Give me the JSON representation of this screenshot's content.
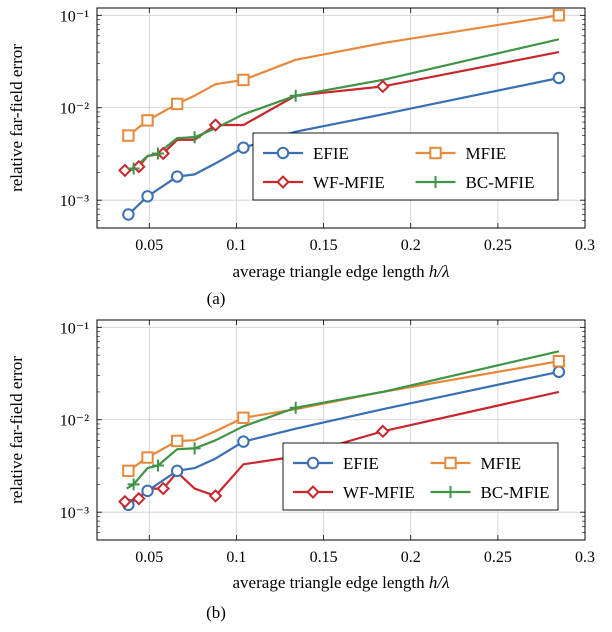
{
  "chart_data": [
    {
      "type": "line",
      "caption": "(a)",
      "xlabel": "average triangle edge length h/λ",
      "ylabel": "relative far-field error",
      "xlim": [
        0.02,
        0.3
      ],
      "ylim": [
        0.0005,
        0.12
      ],
      "yscale": "log",
      "grid": true,
      "legend_position": "bottom-right",
      "x_ticks": [
        0.05,
        0.1,
        0.15,
        0.2,
        0.25,
        0.3
      ],
      "x_tick_labels": [
        "0.05",
        "0.1",
        "0.15",
        "0.2",
        "0.25",
        "0.3"
      ],
      "y_ticks": [
        0.001,
        0.01,
        0.1
      ],
      "y_tick_labels": [
        "10⁻³",
        "10⁻²",
        "10⁻¹"
      ],
      "series": [
        {
          "name": "EFIE",
          "color": "#3a6fb4",
          "marker": "circle",
          "x": [
            0.038,
            0.049,
            0.066,
            0.076,
            0.088,
            0.104,
            0.134,
            0.184,
            0.285
          ],
          "y": [
            0.0007,
            0.0011,
            0.0018,
            0.0019,
            0.0025,
            0.0037,
            0.0055,
            0.0085,
            0.021
          ],
          "markers_at": [
            0.038,
            0.049,
            0.066,
            0.104,
            0.285
          ]
        },
        {
          "name": "MFIE",
          "color": "#e8883a",
          "marker": "square",
          "x": [
            0.038,
            0.049,
            0.066,
            0.076,
            0.088,
            0.104,
            0.134,
            0.184,
            0.285
          ],
          "y": [
            0.005,
            0.0073,
            0.011,
            0.0135,
            0.018,
            0.02,
            0.033,
            0.05,
            0.1
          ],
          "markers_at": [
            0.038,
            0.049,
            0.066,
            0.104,
            0.285
          ]
        },
        {
          "name": "WF-MFIE",
          "color": "#c8282d",
          "marker": "diamond",
          "x": [
            0.036,
            0.044,
            0.049,
            0.058,
            0.066,
            0.076,
            0.088,
            0.104,
            0.134,
            0.184,
            0.285
          ],
          "y": [
            0.0021,
            0.0023,
            0.003,
            0.0032,
            0.0045,
            0.0045,
            0.0065,
            0.0065,
            0.0135,
            0.017,
            0.04
          ],
          "markers_at": [
            0.036,
            0.044,
            0.058,
            0.088,
            0.184
          ]
        },
        {
          "name": "BC-MFIE",
          "color": "#3f9445",
          "marker": "plus",
          "x": [
            0.037,
            0.041,
            0.049,
            0.055,
            0.066,
            0.076,
            0.088,
            0.104,
            0.134,
            0.184,
            0.285
          ],
          "y": [
            0.002,
            0.0022,
            0.003,
            0.0032,
            0.0047,
            0.0048,
            0.006,
            0.0085,
            0.0135,
            0.02,
            0.055
          ],
          "markers_at": [
            0.041,
            0.055,
            0.076,
            0.134
          ]
        }
      ]
    },
    {
      "type": "line",
      "caption": "(b)",
      "xlabel": "average triangle edge length h/λ",
      "ylabel": "relative far-field error",
      "xlim": [
        0.02,
        0.3
      ],
      "ylim": [
        0.0005,
        0.12
      ],
      "yscale": "log",
      "grid": true,
      "legend_position": "bottom-right",
      "x_ticks": [
        0.05,
        0.1,
        0.15,
        0.2,
        0.25,
        0.3
      ],
      "x_tick_labels": [
        "0.05",
        "0.1",
        "0.15",
        "0.2",
        "0.25",
        "0.3"
      ],
      "y_ticks": [
        0.001,
        0.01,
        0.1
      ],
      "y_tick_labels": [
        "10⁻³",
        "10⁻²",
        "10⁻¹"
      ],
      "series": [
        {
          "name": "EFIE",
          "color": "#3a6fb4",
          "marker": "circle",
          "x": [
            0.038,
            0.049,
            0.066,
            0.076,
            0.088,
            0.104,
            0.134,
            0.184,
            0.285
          ],
          "y": [
            0.0012,
            0.0017,
            0.0028,
            0.003,
            0.0038,
            0.0058,
            0.008,
            0.013,
            0.033
          ],
          "markers_at": [
            0.038,
            0.049,
            0.066,
            0.104,
            0.285
          ]
        },
        {
          "name": "MFIE",
          "color": "#e8883a",
          "marker": "square",
          "x": [
            0.038,
            0.049,
            0.066,
            0.076,
            0.088,
            0.104,
            0.134,
            0.184,
            0.285
          ],
          "y": [
            0.0028,
            0.0039,
            0.0059,
            0.006,
            0.0075,
            0.0105,
            0.013,
            0.02,
            0.043
          ],
          "markers_at": [
            0.038,
            0.049,
            0.066,
            0.104,
            0.285
          ]
        },
        {
          "name": "WF-MFIE",
          "color": "#c8282d",
          "marker": "diamond",
          "x": [
            0.036,
            0.044,
            0.049,
            0.058,
            0.066,
            0.076,
            0.088,
            0.104,
            0.134,
            0.184,
            0.285
          ],
          "y": [
            0.0013,
            0.0014,
            0.0018,
            0.0018,
            0.0027,
            0.0018,
            0.0015,
            0.0033,
            0.004,
            0.0075,
            0.02
          ],
          "markers_at": [
            0.036,
            0.044,
            0.058,
            0.088,
            0.184
          ]
        },
        {
          "name": "BC-MFIE",
          "color": "#3f9445",
          "marker": "plus",
          "x": [
            0.037,
            0.041,
            0.049,
            0.055,
            0.066,
            0.076,
            0.088,
            0.104,
            0.134,
            0.184,
            0.285
          ],
          "y": [
            0.0018,
            0.002,
            0.003,
            0.0032,
            0.0048,
            0.0049,
            0.006,
            0.0085,
            0.0135,
            0.02,
            0.055
          ],
          "markers_at": [
            0.041,
            0.055,
            0.076,
            0.134
          ]
        }
      ]
    }
  ]
}
